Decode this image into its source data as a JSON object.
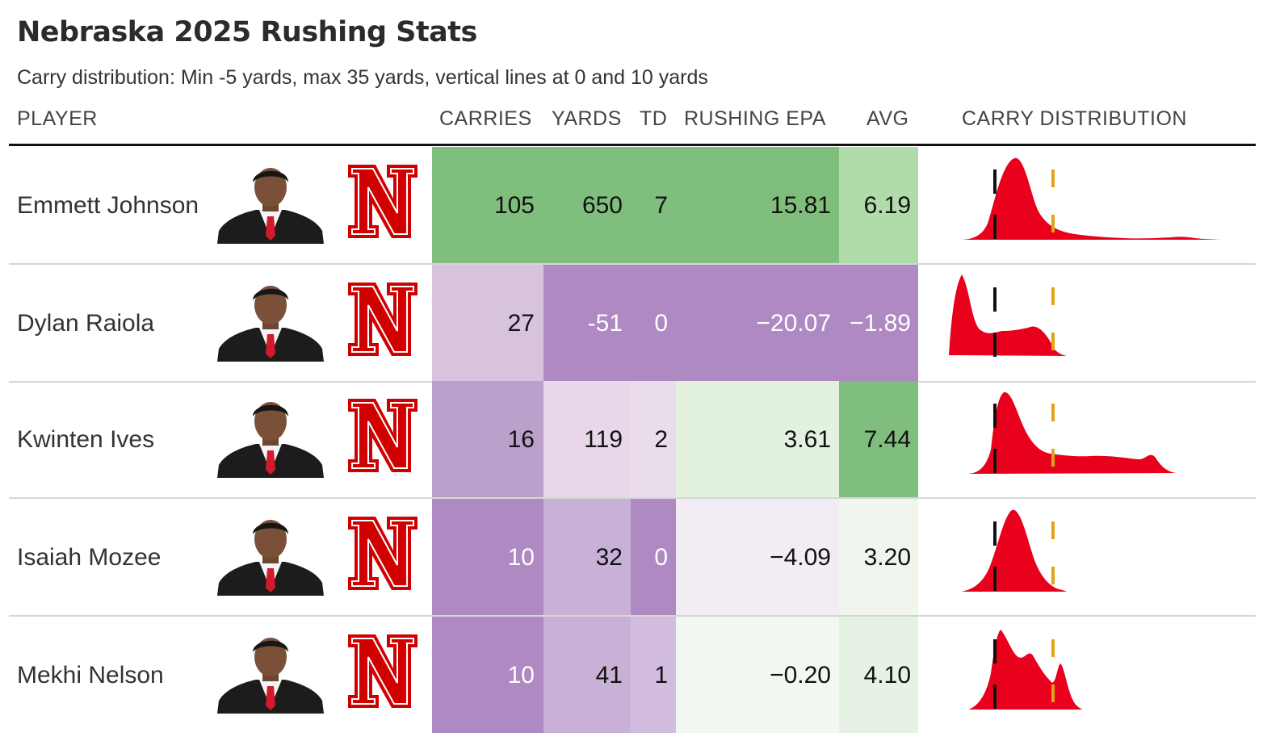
{
  "title": "Nebraska 2025 Rushing Stats",
  "subtitle": "Carry distribution: Min -5 yards, max 35 yards, vertical lines at 0 and 10 yards",
  "headers": {
    "player": "PLAYER",
    "carries": "CARRIES",
    "yards": "YARDS",
    "td": "TD",
    "epa": "RUSHING EPA",
    "avg": "AVG",
    "dist": "CARRY DISTRIBUTION"
  },
  "colors": {
    "dist_fill": "#e8001c",
    "zero_line": "#111111",
    "ten_line": "#e0a418",
    "team": "#d00000"
  },
  "rows": [
    {
      "player": "Emmett Johnson",
      "carries": "105",
      "yards": "650",
      "td": "7",
      "epa": "15.81",
      "avg": "6.19",
      "bg": {
        "carries": "#80be7e",
        "yards": "#80be7e",
        "td": "#80be7e",
        "epa": "#80be7e",
        "avg": "#b0dbab"
      },
      "fg": {
        "carries": "#111",
        "yards": "#111",
        "td": "#111",
        "epa": "#111",
        "avg": "#111"
      }
    },
    {
      "player": "Dylan Raiola",
      "carries": "27",
      "yards": "-51",
      "td": "0",
      "epa": "−20.07",
      "avg": "−1.89",
      "bg": {
        "carries": "#d8c3df",
        "yards": "#ae89c2",
        "td": "#ae89c2",
        "epa": "#ae89c2",
        "avg": "#ae89c2"
      },
      "fg": {
        "carries": "#111",
        "yards": "#ffffff",
        "td": "#ffffff",
        "epa": "#ffffff",
        "avg": "#ffffff"
      }
    },
    {
      "player": "Kwinten Ives",
      "carries": "16",
      "yards": "119",
      "td": "2",
      "epa": "3.61",
      "avg": "7.44",
      "bg": {
        "carries": "#bca0cc",
        "yards": "#e7d7e9",
        "td": "#e9ddec",
        "epa": "#e3f2df",
        "avg": "#80be7e"
      },
      "fg": {
        "carries": "#111",
        "yards": "#111",
        "td": "#111",
        "epa": "#111",
        "avg": "#111"
      }
    },
    {
      "player": "Isaiah Mozee",
      "carries": "10",
      "yards": "32",
      "td": "0",
      "epa": "−4.09",
      "avg": "3.20",
      "bg": {
        "carries": "#ae89c2",
        "yards": "#c8b0d6",
        "td": "#ae89c2",
        "epa": "#f2ecf4",
        "avg": "#f0f6ee"
      },
      "fg": {
        "carries": "#ffffff",
        "yards": "#111",
        "td": "#ffffff",
        "epa": "#111",
        "avg": "#111"
      }
    },
    {
      "player": "Mekhi Nelson",
      "carries": "10",
      "yards": "41",
      "td": "1",
      "epa": "−0.20",
      "avg": "4.10",
      "bg": {
        "carries": "#ae89c2",
        "yards": "#c8b0d6",
        "td": "#d2bde0",
        "epa": "#f3f7f2",
        "avg": "#e6f2e3"
      },
      "fg": {
        "carries": "#ffffff",
        "yards": "#111",
        "td": "#111",
        "epa": "#111",
        "avg": "#111"
      }
    }
  ]
}
